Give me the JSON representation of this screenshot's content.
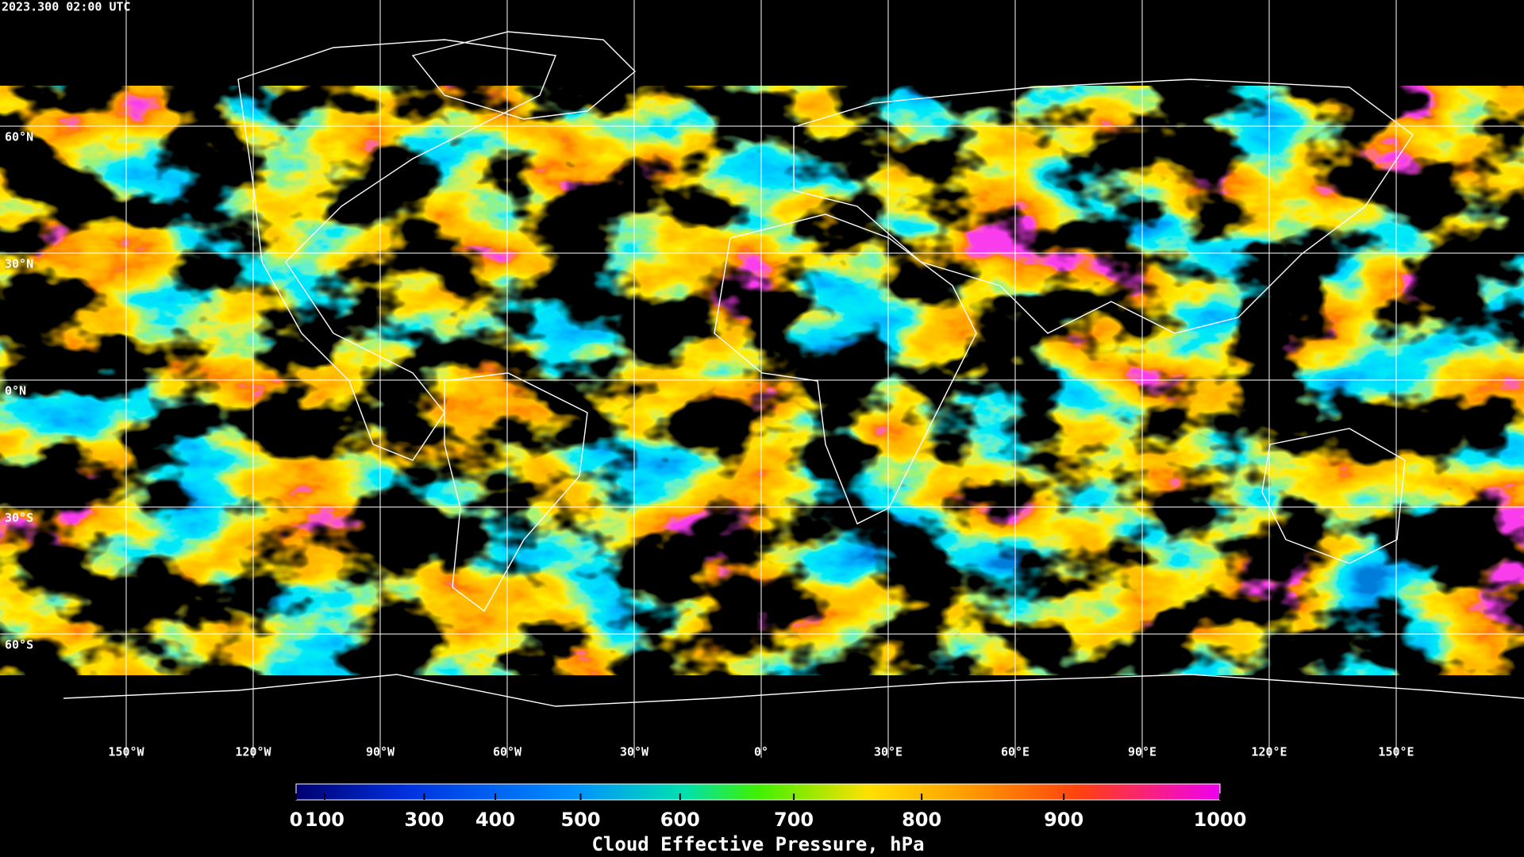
{
  "header": {
    "timestamp": "2023.300 02:00 UTC"
  },
  "map": {
    "lat_labels": [
      "60°N",
      "30°N",
      "0°N",
      "30°S",
      "60°S"
    ],
    "lon_labels": [
      "150°W",
      "120°W",
      "90°W",
      "60°W",
      "30°W",
      "0°",
      "30°E",
      "60°E",
      "90°E",
      "120°E",
      "150°E"
    ]
  },
  "colorbar": {
    "ticks": [
      0,
      100,
      300,
      400,
      500,
      600,
      700,
      800,
      900,
      1000
    ],
    "range": [
      0,
      1000
    ],
    "title": "Cloud Effective Pressure, hPa"
  }
}
